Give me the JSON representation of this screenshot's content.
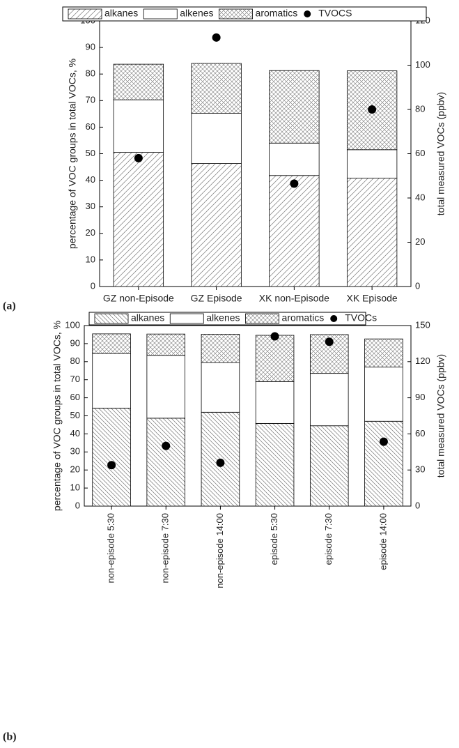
{
  "chart_data": [
    {
      "type": "bar",
      "stacked": true,
      "panel": "(a)",
      "legend": "top",
      "ylabel": "percentage of VOC groups in total VOCs, %",
      "y2label": "total measured VOCs (ppbv)",
      "categories": [
        "GZ non-Episode",
        "GZ Episode",
        "XK non-Episode",
        "XK Episode"
      ],
      "series": [
        {
          "name": "alkanes",
          "color": "#ffffff",
          "hatch": "diagonal",
          "values": [
            50.5,
            46.3,
            41.8,
            40.8
          ]
        },
        {
          "name": "alkenes",
          "color": "#ffffff",
          "hatch": "none",
          "values": [
            19.8,
            18.9,
            12.2,
            10.7
          ]
        },
        {
          "name": "aromatics",
          "color": "#ffffff",
          "hatch": "cross",
          "values": [
            13.4,
            18.8,
            27.3,
            29.7
          ]
        },
        {
          "name": "TVOCS",
          "type": "scatter",
          "color": "#000000",
          "axis": "y2",
          "values": [
            58,
            112.5,
            46.5,
            80
          ]
        }
      ],
      "ylim": [
        0,
        100
      ],
      "yticks": [
        0,
        10,
        20,
        30,
        40,
        50,
        60,
        70,
        80,
        90,
        100
      ],
      "y2lim": [
        0,
        120
      ],
      "y2ticks": [
        0,
        20,
        40,
        60,
        80,
        100,
        120
      ]
    },
    {
      "type": "bar",
      "stacked": true,
      "panel": "(b)",
      "legend": "top",
      "ylabel": "percentage of VOC groups in total VOCs, %",
      "y2label": "total measured VOCs (ppbv)",
      "categories": [
        "non-episode 5:30",
        "non-episode 7:30",
        "non-episode 14:00",
        "episode 5:30",
        "episode 7:30",
        "episode 14:00"
      ],
      "series": [
        {
          "name": "alkanes",
          "color": "#ffffff",
          "hatch": "back-diagonal",
          "values": [
            54.3,
            48.7,
            52,
            45.8,
            44.5,
            47
          ]
        },
        {
          "name": "alkenes",
          "color": "#ffffff",
          "hatch": "none",
          "values": [
            30.2,
            34.8,
            27.5,
            23.2,
            29,
            30
          ]
        },
        {
          "name": "aromatics",
          "color": "#ffffff",
          "hatch": "cross",
          "values": [
            10.9,
            11.8,
            15.7,
            25.6,
            21.5,
            15.6
          ]
        },
        {
          "name": "TVOCs",
          "type": "scatter",
          "color": "#000000",
          "axis": "y2",
          "values": [
            34,
            50,
            36,
            141,
            136.5,
            53.5
          ]
        }
      ],
      "ylim": [
        0,
        100
      ],
      "yticks": [
        0,
        10,
        20,
        30,
        40,
        50,
        60,
        70,
        80,
        90,
        100
      ],
      "y2lim": [
        0,
        150
      ],
      "y2ticks": [
        0,
        30,
        60,
        90,
        120,
        150
      ]
    }
  ]
}
